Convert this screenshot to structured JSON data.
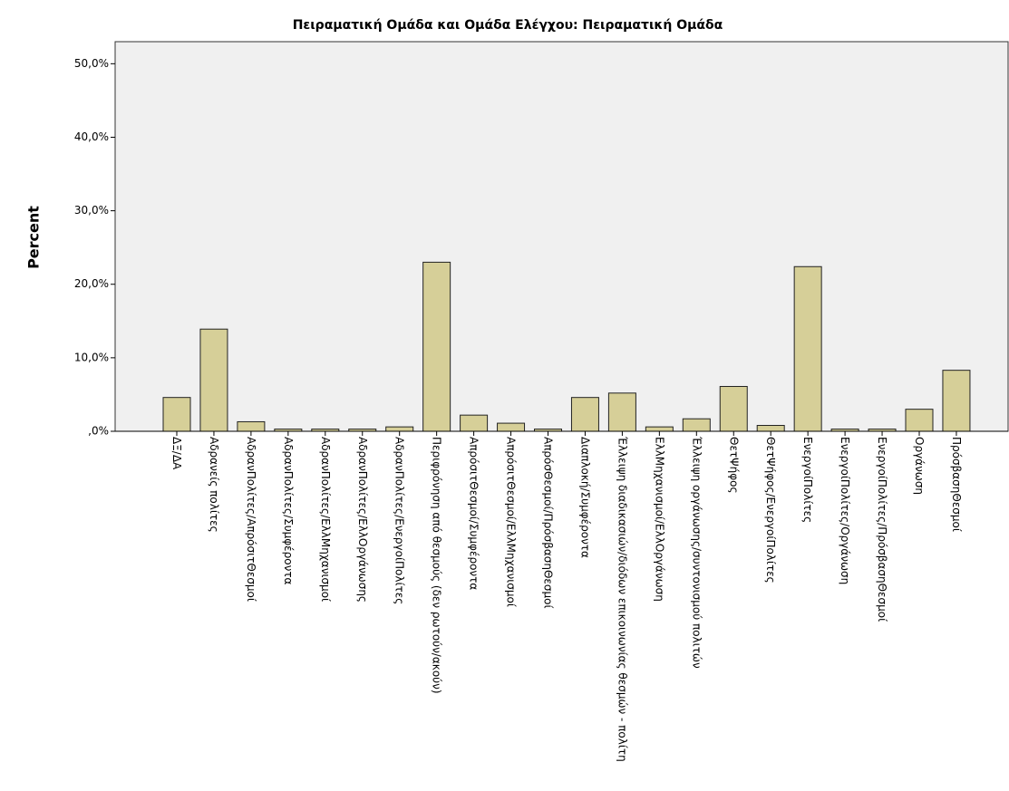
{
  "chart_data": {
    "type": "bar",
    "title": "Πειραματική Ομάδα και Ομάδα Ελέγχου: Πειραματική Ομάδα",
    "y_label": "Percent",
    "categories": [
      "ΔΞ/ΔΑ",
      "Αδρανείς πολίτες",
      "ΑδρανΠολίτες/ΑπρόσιτΘεσμοί",
      "ΑδρανΠολίτες/Συμφέροντα",
      "ΑδρανΠολίτες/ΕλλΜηχανισμοί",
      "ΑδρανΠολίτες/ΕλλΟργάνωσης",
      "ΑδρανΠολίτες/ΕνεργοίΠολίτες",
      "Περιφρόνηση από θεσμούς (δεν ρωτούν/ακούν)",
      "ΑπρόσιτΘεσμοί/Συμφέροντα",
      "ΑπρόσιτΘεσμοί/ΕλλΜηχανισμοί",
      "ΑπρόσΘεσμοί/ΠρόσβασηΘεσμοί",
      "Διαπλοκή/Συμφέροντα",
      "Έλλειψη διαδικασιών/διόδων επικοινωνίας θεσμών - πολίτη",
      "ΕλλΜηχανισμοί/ΕλλΟργάνωση",
      "Έλλειψη οργάνωσης/συντονισμού πολιτών",
      "ΘετΨήφος",
      "ΘετΨήφος/ΕνεργοίΠολίτες",
      "ΕνεργοίΠολίτες",
      "ΕνεργοίΠολίτες/Οργάνωση",
      "ΕνεργοίΠολίτες/ΠρόσβασηΘεσμοί",
      "Οργάνωση",
      "ΠρόσβασηΘεσμοί"
    ],
    "values": [
      4.6,
      13.9,
      1.3,
      0.3,
      0.3,
      0.3,
      0.6,
      23.0,
      2.2,
      1.1,
      0.3,
      4.6,
      5.2,
      0.6,
      1.7,
      6.1,
      0.8,
      22.4,
      0.3,
      0.3,
      3.0,
      8.3
    ],
    "color": "#d6cf98",
    "ylim": [
      0,
      53
    ],
    "yticks": [
      {
        "value": 0,
        "label": ",0%"
      },
      {
        "value": 10,
        "label": "10,0%"
      },
      {
        "value": 20,
        "label": "20,0%"
      },
      {
        "value": 30,
        "label": "30,0%"
      },
      {
        "value": 40,
        "label": "40,0%"
      },
      {
        "value": 50,
        "label": "50,0%"
      }
    ]
  }
}
